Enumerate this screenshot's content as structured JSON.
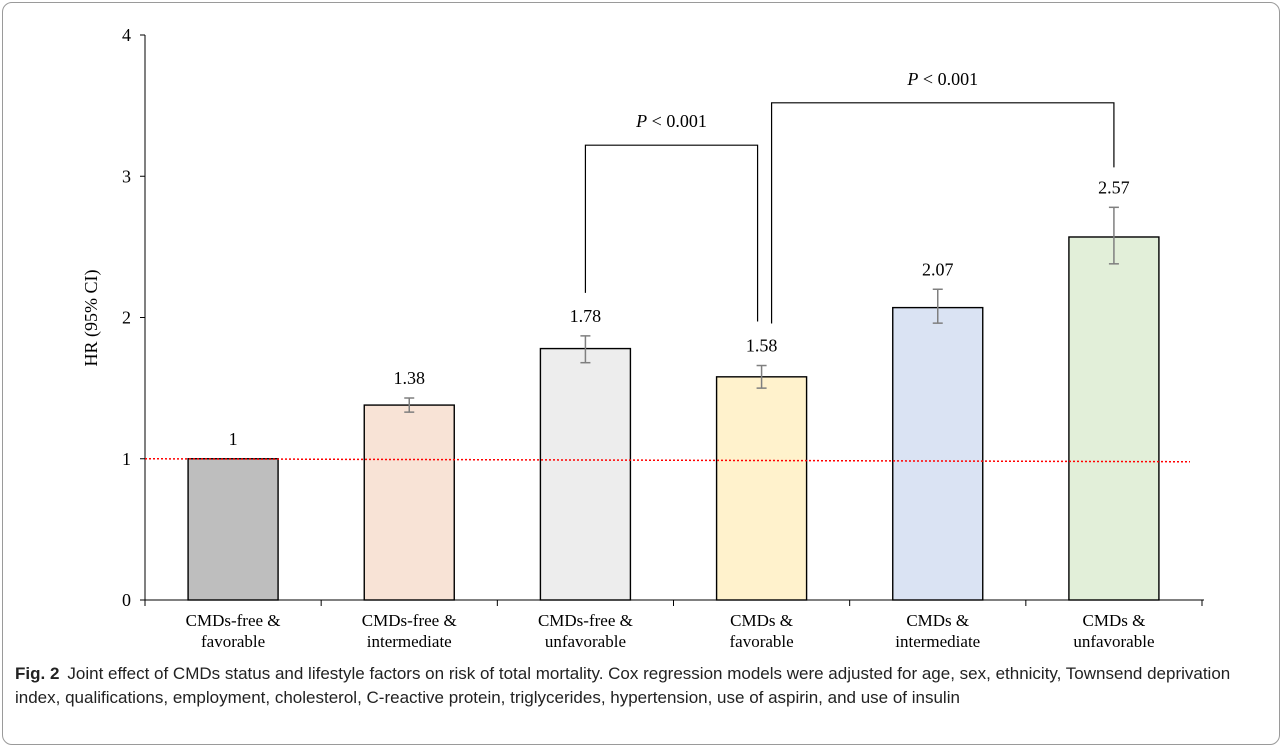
{
  "chart_data": {
    "type": "bar",
    "ylabel": "HR (95% CI)",
    "xlabel": "",
    "ylim": [
      0,
      4
    ],
    "yticks": [
      "0",
      "1",
      "2",
      "3",
      "4"
    ],
    "categories": [
      [
        "CMDs-free &",
        "favorable"
      ],
      [
        "CMDs-free &",
        "intermediate"
      ],
      [
        "CMDs-free &",
        "unfavorable"
      ],
      [
        "CMDs &",
        "favorable"
      ],
      [
        "CMDs &",
        "intermediate"
      ],
      [
        "CMDs &",
        "unfavorable"
      ]
    ],
    "values": [
      1,
      1.38,
      1.78,
      1.58,
      2.07,
      2.57
    ],
    "value_labels": [
      "1",
      "1.38",
      "1.78",
      "1.58",
      "2.07",
      "2.57"
    ],
    "ci_lower": [
      1.0,
      1.33,
      1.68,
      1.5,
      1.96,
      2.38
    ],
    "ci_upper": [
      1.0,
      1.43,
      1.87,
      1.66,
      2.2,
      2.78
    ],
    "bar_colors": [
      "#bebebe",
      "#f8e3d6",
      "#ededed",
      "#fff2cc",
      "#dae3f3",
      "#e2efd9"
    ],
    "reference_line": {
      "y": 1,
      "color": "#ff0000",
      "style": "dotted"
    },
    "comparisons": [
      {
        "from": 2,
        "to": 3,
        "label_prefix": "P",
        "label_rest": " < 0.001",
        "bracket_y": 3.22
      },
      {
        "from": 3,
        "to": 5,
        "label_prefix": "P",
        "label_rest": " < 0.001",
        "bracket_y": 3.52
      }
    ],
    "grid": false,
    "legend": "none"
  },
  "caption": {
    "label": "Fig. 2",
    "text": "Joint effect of CMDs status and lifestyle factors on risk of total mortality. Cox regression models were adjusted for age, sex, ethnicity, Townsend deprivation index, qualifications, employment, cholesterol, C-reactive protein, triglycerides, hypertension, use of aspirin, and use of insulin"
  }
}
